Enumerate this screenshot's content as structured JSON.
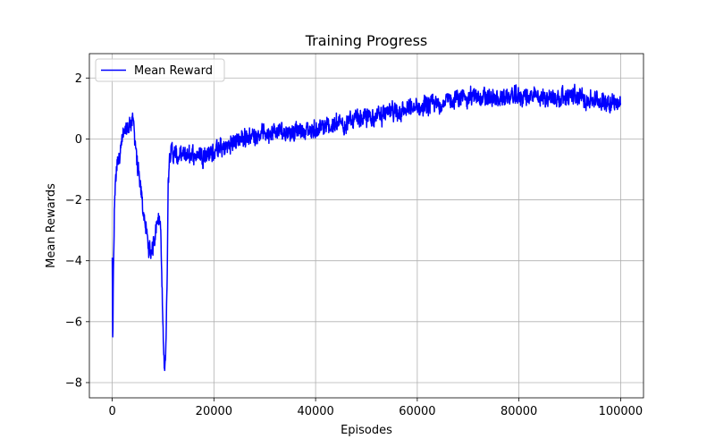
{
  "chart_data": {
    "type": "line",
    "title": "Training Progress",
    "xlabel": "Episodes",
    "ylabel": "Mean Rewards",
    "xlim": [
      -4500,
      104500
    ],
    "ylim": [
      -8.5,
      2.8
    ],
    "xticks": [
      0,
      20000,
      40000,
      60000,
      80000,
      100000
    ],
    "yticks": [
      -8,
      -6,
      -4,
      -2,
      0,
      2
    ],
    "grid": true,
    "legend_position": "top-left",
    "series": [
      {
        "name": "Mean Reward",
        "color": "#0000ff",
        "noise": 0.3,
        "x": [
          0,
          100,
          200,
          400,
          600,
          800,
          1000,
          1500,
          2000,
          2500,
          3000,
          3500,
          4000,
          4500,
          5000,
          5500,
          6000,
          6500,
          7000,
          7500,
          8000,
          8500,
          9000,
          9500,
          10000,
          10300,
          10600,
          10800,
          11000,
          11200,
          11500,
          12000,
          13000,
          15000,
          17000,
          19000,
          20000,
          22000,
          24000,
          26000,
          28000,
          30000,
          35000,
          40000,
          45000,
          50000,
          55000,
          60000,
          65000,
          70000,
          75000,
          80000,
          85000,
          90000,
          95000,
          100000
        ],
        "y": [
          -3.9,
          -7.0,
          -5.0,
          -2.5,
          -1.5,
          -1.0,
          -0.8,
          -0.4,
          0.0,
          0.2,
          0.3,
          0.5,
          0.7,
          0.0,
          -1.0,
          -1.6,
          -2.2,
          -2.8,
          -3.4,
          -3.8,
          -3.5,
          -3.0,
          -2.5,
          -2.8,
          -6.5,
          -7.6,
          -6.5,
          -4.5,
          -1.5,
          -0.6,
          -0.3,
          -0.5,
          -0.6,
          -0.55,
          -0.5,
          -0.5,
          -0.4,
          -0.3,
          -0.1,
          0.05,
          0.15,
          0.2,
          0.25,
          0.3,
          0.5,
          0.7,
          0.85,
          1.0,
          1.2,
          1.4,
          1.3,
          1.4,
          1.35,
          1.4,
          1.25,
          1.2
        ]
      }
    ]
  }
}
